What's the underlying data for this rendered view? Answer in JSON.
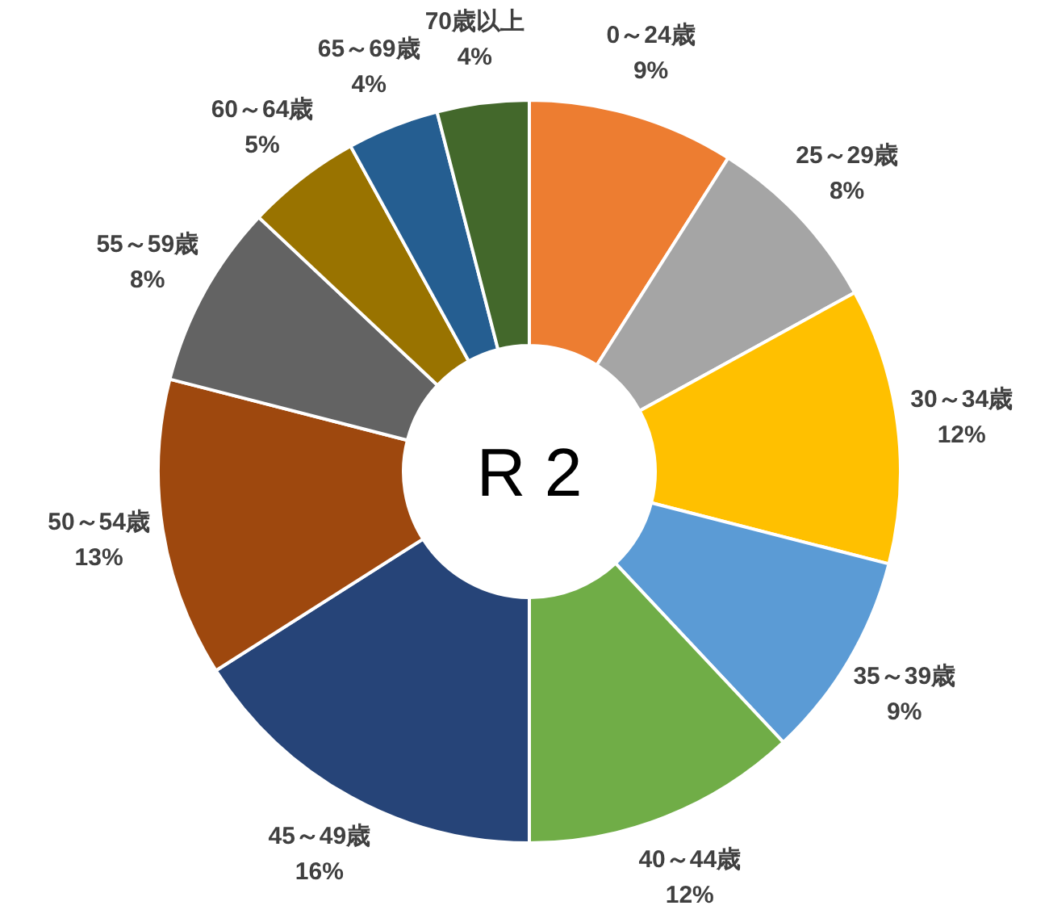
{
  "chart_data": {
    "type": "donut",
    "title": "R 2",
    "categories": [
      "0～24歳",
      "25～29歳",
      "30～34歳",
      "35～39歳",
      "40～44歳",
      "45～49歳",
      "50～54歳",
      "55～59歳",
      "60～64歳",
      "65～69歳",
      "70歳以上"
    ],
    "values": [
      9,
      8,
      12,
      9,
      12,
      16,
      13,
      8,
      5,
      4,
      4
    ],
    "value_labels": [
      "9%",
      "8%",
      "12%",
      "9%",
      "12%",
      "16%",
      "13%",
      "8%",
      "5%",
      "4%",
      "4%"
    ],
    "colors": [
      "#ed7d31",
      "#a5a5a5",
      "#ffc000",
      "#5b9bd5",
      "#70ad47",
      "#264478",
      "#9e480e",
      "#636363",
      "#997300",
      "#255e91",
      "#43682b"
    ],
    "legend": false
  }
}
